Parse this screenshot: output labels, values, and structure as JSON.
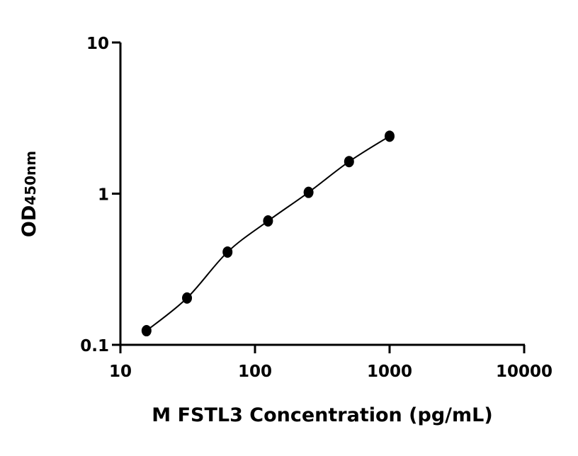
{
  "chart_data": {
    "type": "scatter",
    "title": "",
    "xlabel": "M FSTL3 Concentration (pg/mL)",
    "ylabel_main": "OD",
    "ylabel_sub": "450nm",
    "x_scale": "log",
    "y_scale": "log",
    "xlim": [
      10,
      10000
    ],
    "ylim": [
      0.1,
      10
    ],
    "x_ticks": [
      10,
      100,
      1000,
      10000
    ],
    "x_tick_labels": [
      "10",
      "100",
      "1000",
      "10000"
    ],
    "y_ticks": [
      0.1,
      1,
      10
    ],
    "y_tick_labels": [
      "0.1",
      "1",
      "10"
    ],
    "grid": false,
    "legend": "none",
    "fit_curve": true,
    "marker_color": "#000000",
    "line_color": "#000000",
    "x": [
      15.625,
      31.25,
      62.5,
      125,
      250,
      500,
      1000
    ],
    "y": [
      0.124,
      0.204,
      0.411,
      0.66,
      1.02,
      1.63,
      2.4
    ]
  }
}
